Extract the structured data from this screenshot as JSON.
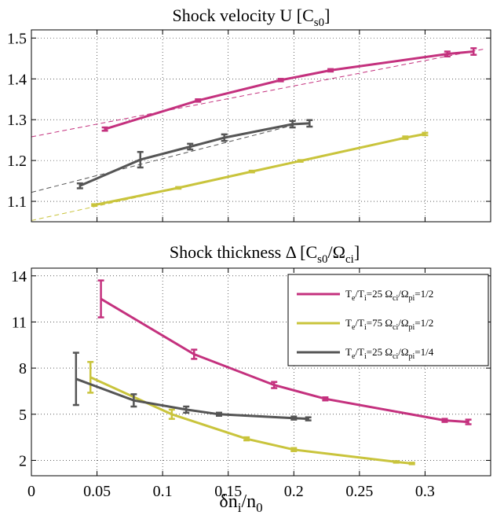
{
  "chart_data": [
    {
      "type": "line",
      "title": "Shock velocity U [C",
      "title_sub": "s0",
      "title_end": "]",
      "xlim": [
        0,
        0.35
      ],
      "ylim": [
        1.05,
        1.52
      ],
      "yticks": [
        "1.1",
        "1.2",
        "1.3",
        "1.4",
        "1.5"
      ],
      "ytick_values": [
        1.1,
        1.2,
        1.3,
        1.4,
        1.5
      ],
      "xtick_values": [
        0,
        0.05,
        0.1,
        0.15,
        0.2,
        0.25,
        0.3
      ],
      "grid": true,
      "series": [
        {
          "color": "#c4317e",
          "x": [
            0.056,
            0.127,
            0.19,
            0.228,
            0.317,
            0.337
          ],
          "y": [
            1.277,
            1.347,
            1.397,
            1.421,
            1.461,
            1.467
          ],
          "err": [
            0.004,
            0.003,
            0.003,
            0.003,
            0.006,
            0.008
          ]
        },
        {
          "color": "#c9c43c",
          "x": [
            0.048,
            0.112,
            0.168,
            0.205,
            0.285,
            0.3
          ],
          "y": [
            1.091,
            1.133,
            1.173,
            1.199,
            1.256,
            1.265
          ],
          "err": [
            0.002,
            0.002,
            0.002,
            0.002,
            0.003,
            0.003
          ]
        },
        {
          "color": "#555555",
          "x": [
            0.037,
            0.083,
            0.121,
            0.147,
            0.199,
            0.212
          ],
          "y": [
            1.138,
            1.202,
            1.234,
            1.256,
            1.289,
            1.291
          ],
          "err": [
            0.006,
            0.019,
            0.007,
            0.008,
            0.008,
            0.008
          ]
        }
      ],
      "fit_lines": [
        {
          "color": "#c4317e",
          "x": [
            0,
            0.345
          ],
          "y": [
            1.258,
            1.473
          ]
        },
        {
          "color": "#c9c43c",
          "x": [
            0,
            0.3
          ],
          "y": [
            1.053,
            1.265
          ]
        },
        {
          "color": "#555555",
          "x": [
            0,
            0.205
          ],
          "y": [
            1.122,
            1.291
          ]
        }
      ]
    },
    {
      "type": "line",
      "title": "Shock thickness Δ [C",
      "title_sub1": "s0",
      "title_mid": "/Ω",
      "title_sub2": "ci",
      "title_end": "]",
      "xlabel": "δn",
      "xlabel_sub1": "i",
      "xlabel_mid": "/n",
      "xlabel_sub2": "0",
      "xlim": [
        0,
        0.35
      ],
      "ylim": [
        1,
        14.5
      ],
      "yticks": [
        "2",
        "5",
        "8",
        "11",
        "14"
      ],
      "ytick_values": [
        2,
        5,
        8,
        11,
        14
      ],
      "xticks": [
        "0",
        "0.05",
        "0.1",
        "0.15",
        "0.2",
        "0.25",
        "0.3"
      ],
      "xtick_values": [
        0,
        0.05,
        0.1,
        0.15,
        0.2,
        0.25,
        0.3
      ],
      "grid": true,
      "legend_position": "top-right",
      "series": [
        {
          "color": "#c4317e",
          "x": [
            0.053,
            0.124,
            0.185,
            0.224,
            0.315,
            0.333
          ],
          "y": [
            12.5,
            8.9,
            6.9,
            6.0,
            4.6,
            4.5
          ],
          "err": [
            1.2,
            0.3,
            0.2,
            0.1,
            0.1,
            0.15
          ],
          "legend": {
            "a": "T",
            "a_sub": "e",
            "b": "/T",
            "b_sub": "i",
            "c": "=25 Ω",
            "c_sub": "ci",
            "d": "/Ω",
            "d_sub": "pi",
            "e": "=1/2"
          }
        },
        {
          "color": "#c9c43c",
          "x": [
            0.045,
            0.107,
            0.164,
            0.2,
            0.278,
            0.29
          ],
          "y": [
            7.4,
            5.0,
            3.4,
            2.7,
            1.9,
            1.8
          ],
          "err": [
            1.0,
            0.3,
            0.1,
            0.1,
            0.05,
            0.05
          ],
          "legend": {
            "a": "T",
            "a_sub": "e",
            "b": "/T",
            "b_sub": "i",
            "c": "=75 Ω",
            "c_sub": "ci",
            "d": "/Ω",
            "d_sub": "pi",
            "e": "=1/2"
          }
        },
        {
          "color": "#555555",
          "x": [
            0.034,
            0.078,
            0.118,
            0.143,
            0.2,
            0.211
          ],
          "y": [
            7.3,
            5.9,
            5.3,
            5.0,
            4.75,
            4.7
          ],
          "err": [
            1.7,
            0.4,
            0.2,
            0.1,
            0.1,
            0.1
          ],
          "legend": {
            "a": "T",
            "a_sub": "e",
            "b": "/T",
            "b_sub": "i",
            "c": "=25 Ω",
            "c_sub": "ci",
            "d": "/Ω",
            "d_sub": "pi",
            "e": "=1/4"
          }
        }
      ]
    }
  ]
}
